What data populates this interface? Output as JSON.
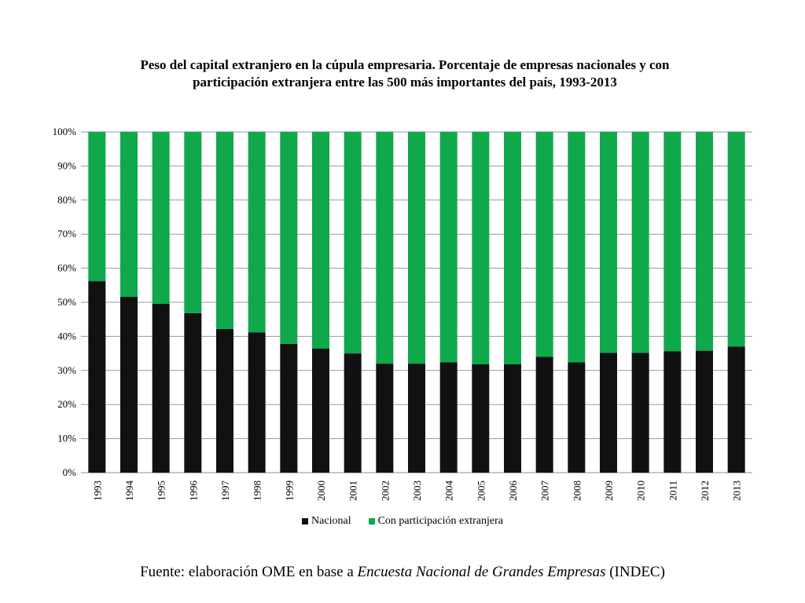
{
  "chart_data": {
    "type": "bar",
    "stacked": true,
    "title_line1": "Peso del capital extranjero en la cúpula empresaria. Porcentaje de empresas nacionales y con",
    "title_line2": "participación extranjera entre las 500 más importantes del país, 1993-2013",
    "categories": [
      "1993",
      "1994",
      "1995",
      "1996",
      "1997",
      "1998",
      "1999",
      "2000",
      "2001",
      "2002",
      "2003",
      "2004",
      "2005",
      "2006",
      "2007",
      "2008",
      "2009",
      "2010",
      "2011",
      "2012",
      "2013"
    ],
    "series": [
      {
        "name": "Nacional",
        "color": "#111111",
        "values": [
          56.2,
          51.6,
          49.6,
          46.8,
          42.2,
          41.2,
          37.8,
          36.4,
          35.0,
          32.0,
          32.0,
          32.4,
          31.8,
          31.8,
          34.0,
          32.4,
          35.2,
          35.2,
          35.6,
          35.8,
          37.0
        ]
      },
      {
        "name": "Con participación extranjera",
        "color": "#0fa84b",
        "values": [
          43.8,
          48.4,
          50.4,
          53.2,
          57.8,
          58.8,
          62.2,
          63.6,
          65.0,
          68.0,
          68.0,
          67.6,
          68.2,
          68.2,
          66.0,
          67.6,
          64.8,
          64.8,
          64.4,
          64.2,
          63.0
        ]
      }
    ],
    "yticks": [
      "0%",
      "10%",
      "20%",
      "30%",
      "40%",
      "50%",
      "60%",
      "70%",
      "80%",
      "90%",
      "100%"
    ],
    "ylim": [
      0,
      100
    ],
    "grid": true,
    "legend_position": "bottom"
  },
  "source": {
    "prefix": "Fuente: elaboración OME en base a ",
    "italic": "Encuesta Nacional de Grandes Empresas",
    "suffix": " (INDEC)"
  }
}
